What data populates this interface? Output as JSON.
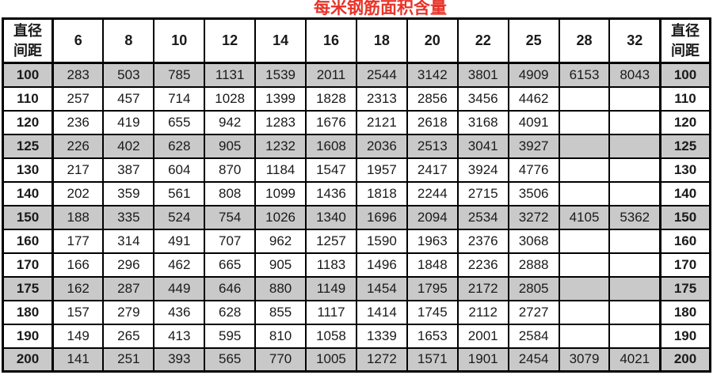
{
  "title": "每米钢筋面积含量",
  "colors": {
    "title_red": "#e8342a",
    "row_shade_gray": "#c9c9c9",
    "border_black": "#000000",
    "background": "#ffffff"
  },
  "table": {
    "corner_label_line1": "直径",
    "corner_label_line2": "间距",
    "diameter_headers": [
      "6",
      "8",
      "10",
      "12",
      "14",
      "16",
      "18",
      "20",
      "22",
      "25",
      "28",
      "32"
    ],
    "rows": [
      {
        "spacing": "100",
        "shaded": true,
        "values": [
          "283",
          "503",
          "785",
          "1131",
          "1539",
          "2011",
          "2544",
          "3142",
          "3801",
          "4909",
          "6153",
          "8043"
        ]
      },
      {
        "spacing": "110",
        "shaded": false,
        "values": [
          "257",
          "457",
          "714",
          "1028",
          "1399",
          "1828",
          "2313",
          "2856",
          "3456",
          "4462",
          "",
          ""
        ]
      },
      {
        "spacing": "120",
        "shaded": false,
        "values": [
          "236",
          "419",
          "655",
          "942",
          "1283",
          "1676",
          "2121",
          "2618",
          "3168",
          "4091",
          "",
          ""
        ]
      },
      {
        "spacing": "125",
        "shaded": true,
        "values": [
          "226",
          "402",
          "628",
          "905",
          "1232",
          "1608",
          "2036",
          "2513",
          "3041",
          "3927",
          "",
          ""
        ]
      },
      {
        "spacing": "130",
        "shaded": false,
        "values": [
          "217",
          "387",
          "604",
          "870",
          "1184",
          "1547",
          "1957",
          "2417",
          "3924",
          "4776",
          "",
          ""
        ]
      },
      {
        "spacing": "140",
        "shaded": false,
        "values": [
          "202",
          "359",
          "561",
          "808",
          "1099",
          "1436",
          "1818",
          "2244",
          "2715",
          "3506",
          "",
          ""
        ]
      },
      {
        "spacing": "150",
        "shaded": true,
        "values": [
          "188",
          "335",
          "524",
          "754",
          "1026",
          "1340",
          "1696",
          "2094",
          "2534",
          "3272",
          "4105",
          "5362"
        ]
      },
      {
        "spacing": "160",
        "shaded": false,
        "values": [
          "177",
          "314",
          "491",
          "707",
          "962",
          "1257",
          "1590",
          "1963",
          "2376",
          "3068",
          "",
          ""
        ]
      },
      {
        "spacing": "170",
        "shaded": false,
        "values": [
          "166",
          "296",
          "462",
          "665",
          "905",
          "1183",
          "1496",
          "1848",
          "2236",
          "2888",
          "",
          ""
        ]
      },
      {
        "spacing": "175",
        "shaded": true,
        "values": [
          "162",
          "287",
          "449",
          "646",
          "880",
          "1149",
          "1454",
          "1795",
          "2172",
          "2805",
          "",
          ""
        ]
      },
      {
        "spacing": "180",
        "shaded": false,
        "values": [
          "157",
          "279",
          "436",
          "628",
          "855",
          "1117",
          "1414",
          "1745",
          "2112",
          "2727",
          "",
          ""
        ]
      },
      {
        "spacing": "190",
        "shaded": false,
        "values": [
          "149",
          "265",
          "413",
          "595",
          "810",
          "1058",
          "1339",
          "1653",
          "2001",
          "2584",
          "",
          ""
        ]
      },
      {
        "spacing": "200",
        "shaded": true,
        "values": [
          "141",
          "251",
          "393",
          "565",
          "770",
          "1005",
          "1272",
          "1571",
          "1901",
          "2454",
          "3079",
          "4021"
        ]
      }
    ]
  }
}
